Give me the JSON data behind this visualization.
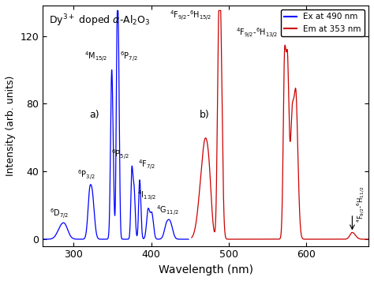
{
  "xlabel": "Wavelength (nm)",
  "ylabel": "Intensity (arb. units)",
  "title": "Dy$^{3+}$ doped $\\alpha$-Al$_2$O$_3$",
  "xlim": [
    260,
    680
  ],
  "ylim": [
    -4,
    138
  ],
  "yticks": [
    0,
    40,
    80,
    120
  ],
  "xticks": [
    300,
    400,
    500,
    600
  ],
  "legend_ex": "Ex at 490 nm",
  "legend_em": "Em at 353 nm",
  "blue_color": "#0000FF",
  "red_color": "#CC0000",
  "bg_color": "#FFFFFF"
}
